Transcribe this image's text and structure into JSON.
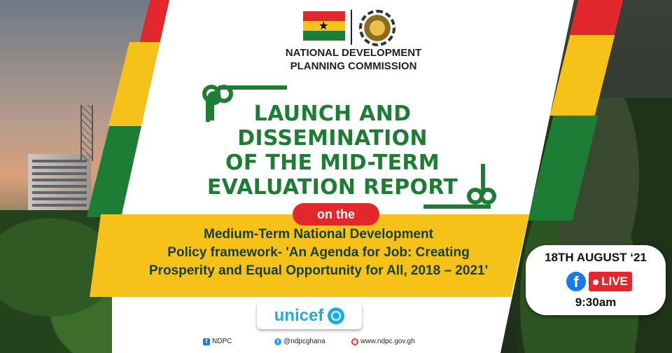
{
  "org": {
    "line1": "NATIONAL DEVELOPMENT",
    "line2": "PLANNING COMMISSION"
  },
  "title": {
    "lines": [
      "LAUNCH AND",
      "DISSEMINATION",
      "OF THE MID-TERM",
      "EVALUATION REPORT"
    ]
  },
  "on_label": "on the",
  "subtitle": {
    "lines": [
      "Medium-Term National Development",
      "Policy framework- 'An Agenda for Job: Creating",
      "Prosperity and Equal Opportunity for All, 2018 – 2021'"
    ]
  },
  "sponsor": "unicef",
  "footer": {
    "facebook": "NDPC",
    "twitter": "@ndpcghana",
    "website": "www.ndpc.gov.gh"
  },
  "event": {
    "date": "18TH AUGUST ‘21",
    "live_label": "LIVE",
    "time": "9:30am"
  },
  "colors": {
    "red": "#e2282c",
    "yellow": "#f6c21a",
    "green": "#1e7d34",
    "facebook_blue": "#1877f2",
    "unicef_blue": "#1cabe2"
  }
}
